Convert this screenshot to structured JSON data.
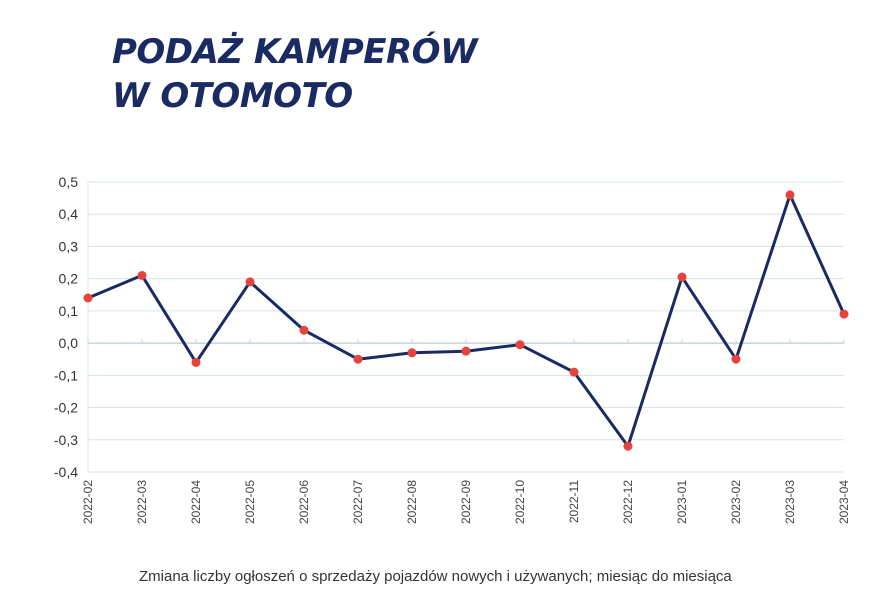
{
  "title_lines": [
    "PODAŻ KAMPERÓW",
    "W OTOMOTO"
  ],
  "caption": "Zmiana liczby ogłoszeń o sprzedaży pojazdów nowych i używanych; miesiąc do miesiąca",
  "chart_data": {
    "type": "line",
    "x": [
      "2022-02",
      "2022-03",
      "2022-04",
      "2022-05",
      "2022-06",
      "2022-07",
      "2022-08",
      "2022-09",
      "2022-10",
      "2022-11",
      "2022-12",
      "2023-01",
      "2023-02",
      "2023-03",
      "2023-04"
    ],
    "values": [
      0.14,
      0.21,
      -0.06,
      0.19,
      0.04,
      -0.05,
      -0.03,
      -0.025,
      -0.005,
      -0.09,
      -0.32,
      0.205,
      -0.05,
      0.46,
      0.09
    ],
    "y_ticks": [
      "0,5",
      "0,4",
      "0,3",
      "0,2",
      "0,1",
      "0,0",
      "-0,1",
      "-0,2",
      "-0,3",
      "-0,4"
    ],
    "ylim": [
      -0.4,
      0.5
    ],
    "grid": true,
    "colors": {
      "line": "#1a2b63",
      "marker": "#e8433a",
      "grid": "#d6e4e8",
      "zero_line": "#c4d4d8"
    }
  }
}
